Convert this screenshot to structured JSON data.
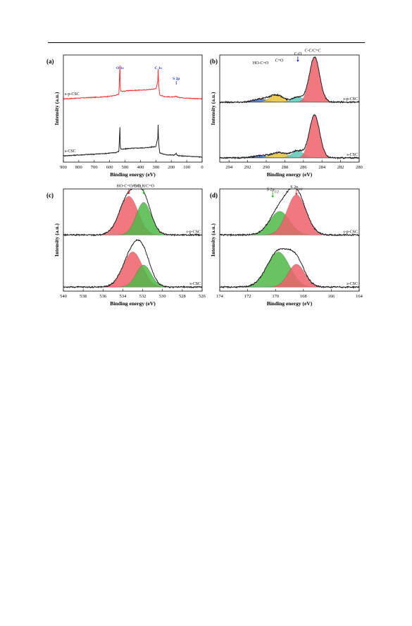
{
  "colors": {
    "survey_red": "#ff3030",
    "survey_black": "#222222",
    "peak_red": "#f0606a",
    "peak_green": "#4fb848",
    "peak_blue": "#4a78d0",
    "peak_yellow": "#e8c23a",
    "peak_teal": "#5cc8b8",
    "label_blue": "#1a33c8",
    "arrow_red": "#e02020",
    "arrow_green": "#22bb22"
  },
  "chart_data": [
    {
      "id": "a",
      "panel_label": "(a)",
      "type": "line",
      "xlabel": "Binding energy (eV)",
      "ylabel": "Intensity (a.u.)",
      "xlim": [
        900,
        0
      ],
      "xticks": [
        900,
        800,
        700,
        600,
        500,
        400,
        300,
        200,
        100,
        0
      ],
      "series": [
        {
          "name": "s-p-CSC",
          "color": "#ff3030",
          "offset": 0.58,
          "height": 0.35,
          "x": [
            900,
            800,
            700,
            620,
            560,
            540,
            533,
            531,
            528,
            515,
            480,
            420,
            360,
            300,
            287,
            285,
            283,
            275,
            240,
            200,
            180,
            168,
            162,
            150,
            100,
            50,
            0
          ],
          "y": [
            0.03,
            0.05,
            0.07,
            0.09,
            0.12,
            0.16,
            0.95,
            0.33,
            0.24,
            0.23,
            0.25,
            0.26,
            0.27,
            0.3,
            0.5,
            1.0,
            0.48,
            0.13,
            0.09,
            0.08,
            0.08,
            0.11,
            0.08,
            0.07,
            0.05,
            0.04,
            0.03
          ]
        },
        {
          "name": "s-CSC",
          "color": "#222222",
          "offset": 0.04,
          "height": 0.38,
          "x": [
            900,
            800,
            700,
            620,
            560,
            540,
            533,
            531,
            528,
            515,
            480,
            420,
            360,
            300,
            287,
            285,
            283,
            275,
            240,
            200,
            180,
            168,
            162,
            150,
            100,
            50,
            0
          ],
          "y": [
            0.05,
            0.07,
            0.09,
            0.11,
            0.13,
            0.16,
            0.78,
            0.3,
            0.22,
            0.21,
            0.23,
            0.24,
            0.25,
            0.28,
            0.5,
            1.0,
            0.42,
            0.12,
            0.08,
            0.07,
            0.07,
            0.11,
            0.06,
            0.05,
            0.04,
            0.03,
            0.02
          ]
        }
      ],
      "annotations": [
        {
          "text": "O 1s",
          "x": 533,
          "y": 1.0,
          "color": "#1a33c8"
        },
        {
          "text": "C 1s",
          "x": 285,
          "y": 1.0,
          "color": "#1a33c8"
        },
        {
          "text": "S 2p",
          "x": 168,
          "y": 0.7,
          "color": "#1a33c8",
          "arrow": true
        }
      ]
    },
    {
      "id": "b",
      "panel_label": "(b)",
      "type": "area",
      "xlabel": "Binding energy (eV)",
      "ylabel": "Intensity (a.u.)",
      "xlim": [
        295,
        280
      ],
      "xticks": [
        294,
        292,
        290,
        288,
        286,
        284,
        282,
        280
      ],
      "stacks": [
        {
          "name": "s-p-CSC",
          "offset": 0.56,
          "height": 0.42,
          "peaks": [
            {
              "label": "HO-C=O",
              "center": 290.6,
              "fwhm": 1.8,
              "height": 0.07,
              "color": "#4a78d0"
            },
            {
              "label": "C=O",
              "center": 288.9,
              "fwhm": 1.7,
              "height": 0.16,
              "color": "#e8c23a"
            },
            {
              "label": "C-O",
              "center": 286.6,
              "fwhm": 1.4,
              "height": 0.12,
              "color": "#5cc8b8"
            },
            {
              "label": "C-C/C=C",
              "center": 284.8,
              "fwhm": 1.3,
              "height": 1.0,
              "color": "#f0606a"
            }
          ]
        },
        {
          "name": "s-CSC",
          "offset": 0.04,
          "height": 0.4,
          "peaks": [
            {
              "label": "HO-C=O",
              "center": 290.6,
              "fwhm": 1.8,
              "height": 0.05,
              "color": "#4a78d0"
            },
            {
              "label": "C=O",
              "center": 288.6,
              "fwhm": 2.0,
              "height": 0.12,
              "color": "#e8c23a"
            },
            {
              "label": "C-O",
              "center": 286.6,
              "fwhm": 1.5,
              "height": 0.16,
              "color": "#5cc8b8"
            },
            {
              "label": "C-C/C=C",
              "center": 284.8,
              "fwhm": 1.3,
              "height": 1.0,
              "color": "#f0606a"
            }
          ]
        }
      ],
      "annotations": [
        {
          "text": "HO-C=O",
          "x": 290.6,
          "y": 0.8
        },
        {
          "text": "C=O",
          "x": 288.6,
          "y": 0.85
        },
        {
          "text": "C-O",
          "x": 286.6,
          "y": 1.0,
          "arrow": true
        },
        {
          "text": "C-C/C=C",
          "x": 285.0,
          "y": 1.07
        }
      ]
    },
    {
      "id": "c",
      "panel_label": "(c)",
      "type": "area",
      "xlabel": "Binding energy (eV)",
      "ylabel": "Intensity (a.u.)",
      "xlim": [
        540,
        526
      ],
      "xticks": [
        540,
        538,
        536,
        534,
        532,
        530,
        528,
        526
      ],
      "stacks": [
        {
          "name": "s-p-CSC",
          "offset": 0.55,
          "height": 0.42,
          "peaks": [
            {
              "label": "HO-C=O/C-O",
              "center": 533.4,
              "fwhm": 2.2,
              "height": 0.9,
              "color": "#f0606a"
            },
            {
              "label": "-SO3H/C=O",
              "center": 531.9,
              "fwhm": 1.8,
              "height": 0.76,
              "color": "#4fb848"
            }
          ]
        },
        {
          "name": "s-CSC",
          "offset": 0.04,
          "height": 0.4,
          "peaks": [
            {
              "label": "HO-C=O/C-O",
              "center": 533.0,
              "fwhm": 2.3,
              "height": 0.86,
              "color": "#f0606a"
            },
            {
              "label": "-SO3H/C=O",
              "center": 531.9,
              "fwhm": 1.8,
              "height": 0.54,
              "color": "#4fb848"
            }
          ]
        }
      ],
      "annotations": [
        {
          "text": "HO-C=O/C-O",
          "x": 533.4,
          "y": 1.06,
          "arrow": true,
          "color": "#e02020"
        },
        {
          "text": "-SO",
          "sub": "3",
          "text2": "H/C=O",
          "x": 531.9,
          "y": 1.06,
          "arrow": true,
          "color": "#22bb22"
        }
      ]
    },
    {
      "id": "d",
      "panel_label": "(d)",
      "type": "area",
      "xlabel": "Binding energy (eV)",
      "ylabel": "Intensity (a.u.)",
      "xlim": [
        174,
        164
      ],
      "xticks": [
        174,
        172,
        170,
        168,
        166,
        164
      ],
      "stacks": [
        {
          "name": "s-p-CSC",
          "offset": 0.55,
          "height": 0.42,
          "peaks": [
            {
              "label": "S 2p1/2",
              "center": 169.7,
              "fwhm": 1.7,
              "height": 0.55,
              "color": "#4fb848"
            },
            {
              "label": "S 2p3/2",
              "center": 168.5,
              "fwhm": 1.6,
              "height": 0.94,
              "color": "#f0606a"
            }
          ]
        },
        {
          "name": "s-CSC",
          "offset": 0.04,
          "height": 0.4,
          "peaks": [
            {
              "label": "S 2p1/2",
              "center": 169.8,
              "fwhm": 1.9,
              "height": 0.86,
              "color": "#4fb848"
            },
            {
              "label": "S 2p3/2",
              "center": 168.5,
              "fwhm": 1.4,
              "height": 0.56,
              "color": "#f0606a"
            }
          ]
        }
      ],
      "annotations": [
        {
          "text": "S 2p",
          "sub": "1/2",
          "x": 170.2,
          "y": 0.98,
          "arrow": true,
          "color": "#22bb22"
        },
        {
          "text": "S 2p",
          "sub": "3/2",
          "x": 168.5,
          "y": 1.04,
          "arrow": true,
          "color": "#e02020"
        }
      ]
    }
  ]
}
